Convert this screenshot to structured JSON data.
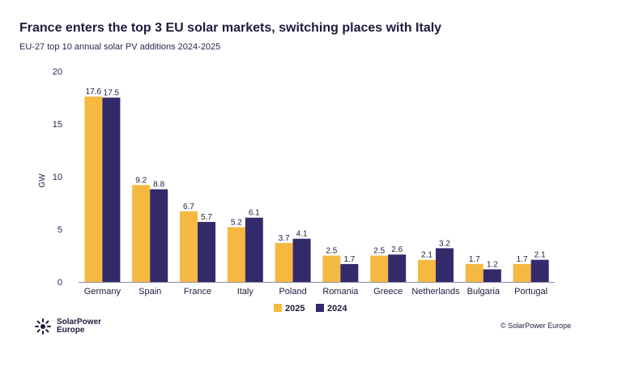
{
  "header": {
    "title": "France enters the top 3 EU solar markets, switching places with Italy",
    "subtitle": "EU-27 top 10 annual solar PV additions 2024-2025"
  },
  "chart_data": {
    "type": "bar",
    "title": "France enters the top 3 EU solar markets, switching places with Italy",
    "subtitle": "EU-27 top 10 annual solar PV additions 2024-2025",
    "xlabel": "",
    "ylabel": "GW",
    "ylim": [
      0,
      20
    ],
    "yticks": [
      0,
      5,
      10,
      15,
      20
    ],
    "grid": false,
    "legend_position": "bottom",
    "categories": [
      "Germany",
      "Spain",
      "France",
      "Italy",
      "Poland",
      "Romania",
      "Greece",
      "Netherlands",
      "Bulgaria",
      "Portugal"
    ],
    "series": [
      {
        "name": "2025",
        "color": "#f5b942",
        "values": [
          17.6,
          9.2,
          6.7,
          5.2,
          3.7,
          2.5,
          2.5,
          2.1,
          1.7,
          1.7
        ],
        "labels": [
          "17.6",
          "9.2",
          "6.7",
          "5.2",
          "3.7",
          "2.5",
          "2.5",
          "2.1",
          "1.7",
          "1.7"
        ]
      },
      {
        "name": "2024",
        "color": "#332a6b",
        "values": [
          17.5,
          8.8,
          5.7,
          6.1,
          4.1,
          1.7,
          2.6,
          3.2,
          1.2,
          2.1
        ],
        "labels": [
          "17.5",
          "8.8",
          "5.7",
          "6.1",
          "4.1",
          "1.7",
          "2.6",
          "3.2",
          "1.2",
          "2.1"
        ]
      }
    ]
  },
  "footer": {
    "logo_text": "SolarPower Europe",
    "logo_icon": "sun-icon",
    "copyright": "© SolarPower Europe"
  }
}
